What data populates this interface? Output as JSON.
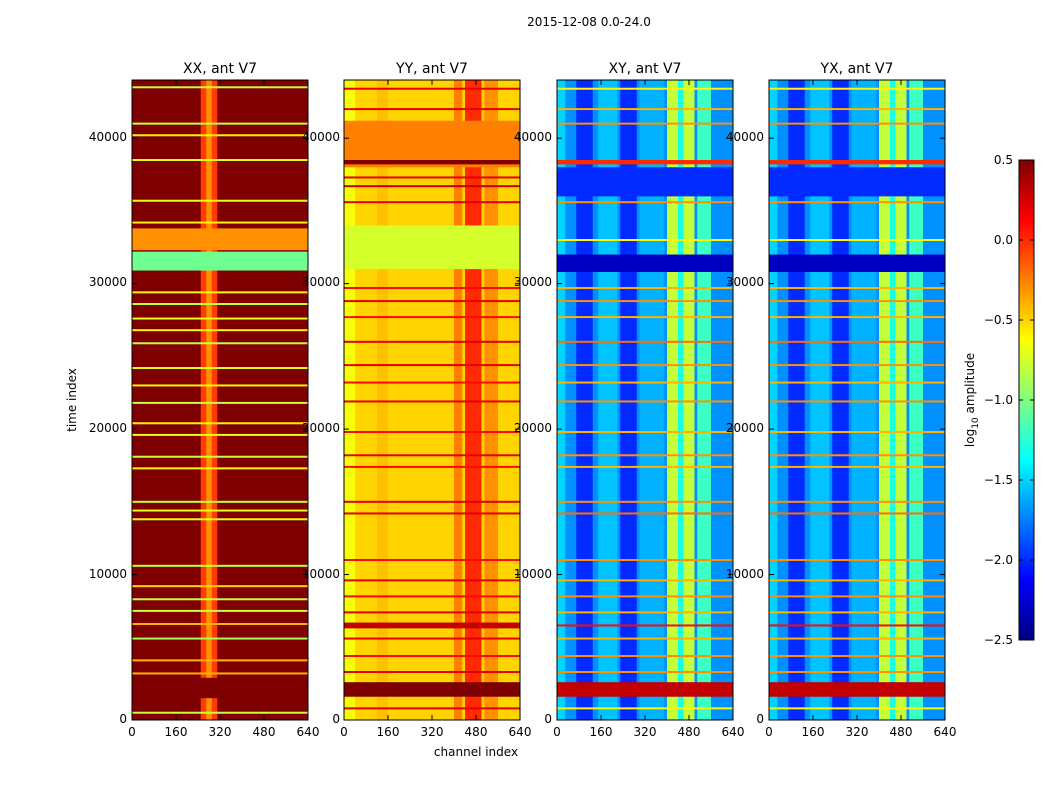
{
  "figure": {
    "suptitle": "2015-12-08 0.0-24.0",
    "xlabel": "channel index",
    "ylabel": "time index",
    "colorbar_label": "log",
    "colorbar_label_sub": "10",
    "colorbar_label_rest": " amplitude",
    "colormap": [
      "#00007f",
      "#0000ff",
      "#007fff",
      "#00ffff",
      "#7fff7f",
      "#ffff00",
      "#ff7f00",
      "#ff0000",
      "#7f0000"
    ]
  },
  "chart_data": [
    {
      "type": "heatmap",
      "title": "XX, ant V7",
      "xlabel": "",
      "ylabel": "time index",
      "xlim": [
        0,
        640
      ],
      "ylim": [
        0,
        44000
      ],
      "xticks": [
        "0",
        "160",
        "320",
        "480",
        "640"
      ],
      "yticks": [
        "0",
        "10000",
        "20000",
        "30000",
        "40000"
      ],
      "base_level": 0.5,
      "column_features": [
        {
          "channel_start": 250,
          "channel_end": 310,
          "delta": -0.55
        },
        {
          "channel_start": 266,
          "channel_end": 294,
          "delta": -0.25
        }
      ],
      "time_bands": [
        {
          "time_start": 1500,
          "time_end": 2900,
          "level": 0.5
        },
        {
          "time_start": 30900,
          "time_end": 32200,
          "level": -1.05
        },
        {
          "time_start": 32300,
          "time_end": 33800,
          "level": -0.3
        }
      ],
      "flag_rows": [
        {
          "time": 500,
          "level": -0.8
        },
        {
          "time": 3200,
          "level": -0.4
        },
        {
          "time": 4100,
          "level": -0.4
        },
        {
          "time": 5600,
          "level": -0.9
        },
        {
          "time": 6600,
          "level": -0.4
        },
        {
          "time": 7500,
          "level": -0.8
        },
        {
          "time": 8300,
          "level": -0.8
        },
        {
          "time": 9200,
          "level": -0.5
        },
        {
          "time": 10600,
          "level": -0.8
        },
        {
          "time": 13800,
          "level": -0.7
        },
        {
          "time": 14400,
          "level": -0.7
        },
        {
          "time": 15000,
          "level": -0.8
        },
        {
          "time": 17300,
          "level": -0.6
        },
        {
          "time": 18100,
          "level": -0.8
        },
        {
          "time": 19600,
          "level": -0.7
        },
        {
          "time": 20400,
          "level": -0.6
        },
        {
          "time": 21800,
          "level": -0.8
        },
        {
          "time": 23000,
          "level": -0.6
        },
        {
          "time": 24200,
          "level": -0.7
        },
        {
          "time": 25900,
          "level": -0.8
        },
        {
          "time": 26800,
          "level": -0.6
        },
        {
          "time": 27600,
          "level": -0.7
        },
        {
          "time": 28600,
          "level": -0.8
        },
        {
          "time": 29400,
          "level": -0.6
        },
        {
          "time": 34200,
          "level": -0.6
        },
        {
          "time": 35700,
          "level": -0.7
        },
        {
          "time": 38500,
          "level": -0.7
        },
        {
          "time": 40200,
          "level": -0.6
        },
        {
          "time": 41000,
          "level": -0.8
        },
        {
          "time": 43500,
          "level": -0.8
        }
      ]
    },
    {
      "type": "heatmap",
      "title": "YY, ant V7",
      "xlabel": "channel index",
      "ylabel": "",
      "xlim": [
        0,
        640
      ],
      "ylim": [
        0,
        44000
      ],
      "xticks": [
        "0",
        "160",
        "320",
        "480",
        "640"
      ],
      "yticks": [
        "0",
        "10000",
        "20000",
        "30000",
        "40000"
      ],
      "base_level": -0.5,
      "column_features": [
        {
          "channel_start": 0,
          "channel_end": 40,
          "delta": -0.15
        },
        {
          "channel_start": 120,
          "channel_end": 160,
          "delta": 0.06
        },
        {
          "channel_start": 400,
          "channel_end": 430,
          "delta": 0.25
        },
        {
          "channel_start": 440,
          "channel_end": 500,
          "delta": 0.5
        },
        {
          "channel_start": 510,
          "channel_end": 560,
          "delta": 0.2
        }
      ],
      "time_bands": [
        {
          "time_start": 1600,
          "time_end": 2600,
          "level": 0.5
        },
        {
          "time_start": 6300,
          "time_end": 6700,
          "level": 0.3
        },
        {
          "time_start": 31000,
          "time_end": 34000,
          "level": -0.75
        },
        {
          "time_start": 38000,
          "time_end": 41200,
          "level": -0.25
        },
        {
          "time_start": 38200,
          "time_end": 38500,
          "level": 0.5
        }
      ],
      "flag_rows": [
        {
          "time": 800,
          "level": 0.2
        },
        {
          "time": 3300,
          "level": 0.2
        },
        {
          "time": 4400,
          "level": 0.1
        },
        {
          "time": 5600,
          "level": 0.2
        },
        {
          "time": 7400,
          "level": 0.2
        },
        {
          "time": 8500,
          "level": 0.1
        },
        {
          "time": 9600,
          "level": 0.2
        },
        {
          "time": 11000,
          "level": 0.1
        },
        {
          "time": 14200,
          "level": 0.2
        },
        {
          "time": 15000,
          "level": 0.2
        },
        {
          "time": 17400,
          "level": 0.1
        },
        {
          "time": 18200,
          "level": 0.2
        },
        {
          "time": 19800,
          "level": 0.1
        },
        {
          "time": 21900,
          "level": 0.2
        },
        {
          "time": 23200,
          "level": 0.1
        },
        {
          "time": 24400,
          "level": 0.2
        },
        {
          "time": 26000,
          "level": 0.2
        },
        {
          "time": 27700,
          "level": 0.1
        },
        {
          "time": 28800,
          "level": 0.2
        },
        {
          "time": 29700,
          "level": 0.1
        },
        {
          "time": 35600,
          "level": 0.2
        },
        {
          "time": 36700,
          "level": 0.3
        },
        {
          "time": 37300,
          "level": 0.2
        },
        {
          "time": 42000,
          "level": 0.2
        },
        {
          "time": 43400,
          "level": 0.2
        }
      ]
    },
    {
      "type": "heatmap",
      "title": "XY, ant V7",
      "xlabel": "",
      "ylabel": "",
      "xlim": [
        0,
        640
      ],
      "ylim": [
        0,
        44000
      ],
      "xticks": [
        "0",
        "160",
        "320",
        "480",
        "640"
      ],
      "yticks": [
        "0",
        "10000",
        "20000",
        "30000",
        "40000"
      ],
      "base_level": -1.7,
      "column_features": [
        {
          "channel_start": 0,
          "channel_end": 30,
          "delta": 0.2
        },
        {
          "channel_start": 70,
          "channel_end": 130,
          "delta": -0.3
        },
        {
          "channel_start": 150,
          "channel_end": 220,
          "delta": 0.15
        },
        {
          "channel_start": 230,
          "channel_end": 290,
          "delta": -0.3
        },
        {
          "channel_start": 300,
          "channel_end": 390,
          "delta": 0.1
        },
        {
          "channel_start": 400,
          "channel_end": 440,
          "delta": 0.9
        },
        {
          "channel_start": 445,
          "channel_end": 460,
          "delta": 0.4
        },
        {
          "channel_start": 460,
          "channel_end": 500,
          "delta": 0.9
        },
        {
          "channel_start": 510,
          "channel_end": 560,
          "delta": 0.5
        }
      ],
      "time_bands": [
        {
          "time_start": 1600,
          "time_end": 2600,
          "level": 0.3
        },
        {
          "time_start": 30800,
          "time_end": 32000,
          "level": -2.3
        },
        {
          "time_start": 36000,
          "time_end": 38000,
          "level": -2.0
        },
        {
          "time_start": 38200,
          "time_end": 38500,
          "level": 0.0
        }
      ],
      "flag_rows": [
        {
          "time": 800,
          "level": -0.6
        },
        {
          "time": 3300,
          "level": -0.3
        },
        {
          "time": 4400,
          "level": -0.3
        },
        {
          "time": 5600,
          "level": -0.4
        },
        {
          "time": 6500,
          "level": 0.1
        },
        {
          "time": 7400,
          "level": -0.4
        },
        {
          "time": 8500,
          "level": -0.3
        },
        {
          "time": 9600,
          "level": -0.4
        },
        {
          "time": 11000,
          "level": -0.3
        },
        {
          "time": 14200,
          "level": -0.2
        },
        {
          "time": 15000,
          "level": -0.3
        },
        {
          "time": 17400,
          "level": -0.4
        },
        {
          "time": 18200,
          "level": -0.3
        },
        {
          "time": 19800,
          "level": -0.4
        },
        {
          "time": 21900,
          "level": -0.3
        },
        {
          "time": 23200,
          "level": -0.4
        },
        {
          "time": 24400,
          "level": -0.3
        },
        {
          "time": 26000,
          "level": -0.2
        },
        {
          "time": 27700,
          "level": -0.4
        },
        {
          "time": 28800,
          "level": -0.3
        },
        {
          "time": 29700,
          "level": -0.4
        },
        {
          "time": 33000,
          "level": -0.6
        },
        {
          "time": 35600,
          "level": -0.3
        },
        {
          "time": 41000,
          "level": -0.3
        },
        {
          "time": 42000,
          "level": -0.4
        },
        {
          "time": 43400,
          "level": -0.6
        }
      ]
    },
    {
      "type": "heatmap",
      "title": "YX, ant V7",
      "xlabel": "",
      "ylabel": "",
      "xlim": [
        0,
        640
      ],
      "ylim": [
        0,
        44000
      ],
      "xticks": [
        "0",
        "160",
        "320",
        "480",
        "640"
      ],
      "yticks": [
        "0",
        "10000",
        "20000",
        "30000",
        "40000"
      ],
      "base_level": -1.7,
      "column_features": [
        {
          "channel_start": 0,
          "channel_end": 30,
          "delta": 0.2
        },
        {
          "channel_start": 70,
          "channel_end": 130,
          "delta": -0.3
        },
        {
          "channel_start": 150,
          "channel_end": 220,
          "delta": 0.15
        },
        {
          "channel_start": 230,
          "channel_end": 290,
          "delta": -0.3
        },
        {
          "channel_start": 300,
          "channel_end": 390,
          "delta": 0.1
        },
        {
          "channel_start": 400,
          "channel_end": 440,
          "delta": 0.9
        },
        {
          "channel_start": 445,
          "channel_end": 460,
          "delta": 0.4
        },
        {
          "channel_start": 460,
          "channel_end": 500,
          "delta": 0.9
        },
        {
          "channel_start": 510,
          "channel_end": 560,
          "delta": 0.5
        }
      ],
      "time_bands": [
        {
          "time_start": 1600,
          "time_end": 2600,
          "level": 0.3
        },
        {
          "time_start": 30800,
          "time_end": 32000,
          "level": -2.3
        },
        {
          "time_start": 36000,
          "time_end": 38000,
          "level": -2.0
        },
        {
          "time_start": 38200,
          "time_end": 38500,
          "level": 0.0
        }
      ],
      "flag_rows": [
        {
          "time": 800,
          "level": -0.6
        },
        {
          "time": 3300,
          "level": -0.3
        },
        {
          "time": 4400,
          "level": -0.3
        },
        {
          "time": 5600,
          "level": -0.4
        },
        {
          "time": 6500,
          "level": 0.1
        },
        {
          "time": 7400,
          "level": -0.4
        },
        {
          "time": 8500,
          "level": -0.3
        },
        {
          "time": 9600,
          "level": -0.4
        },
        {
          "time": 11000,
          "level": -0.3
        },
        {
          "time": 14200,
          "level": -0.2
        },
        {
          "time": 15000,
          "level": -0.3
        },
        {
          "time": 17400,
          "level": -0.4
        },
        {
          "time": 18200,
          "level": -0.3
        },
        {
          "time": 19800,
          "level": -0.4
        },
        {
          "time": 21900,
          "level": -0.3
        },
        {
          "time": 23200,
          "level": -0.4
        },
        {
          "time": 24400,
          "level": -0.3
        },
        {
          "time": 26000,
          "level": -0.2
        },
        {
          "time": 27700,
          "level": -0.4
        },
        {
          "time": 28800,
          "level": -0.3
        },
        {
          "time": 29700,
          "level": -0.4
        },
        {
          "time": 33000,
          "level": -0.6
        },
        {
          "time": 35600,
          "level": -0.3
        },
        {
          "time": 41000,
          "level": -0.3
        },
        {
          "time": 42000,
          "level": -0.4
        },
        {
          "time": 43400,
          "level": -0.6
        }
      ]
    },
    {
      "type": "colorbar",
      "title": "",
      "range": [
        -2.5,
        0.5
      ],
      "ticks": [
        "0.5",
        "0.0",
        "−0.5",
        "−1.0",
        "−1.5",
        "−2.0",
        "−2.5"
      ],
      "tick_values": [
        0.5,
        0.0,
        -0.5,
        -1.0,
        -1.5,
        -2.0,
        -2.5
      ]
    }
  ]
}
